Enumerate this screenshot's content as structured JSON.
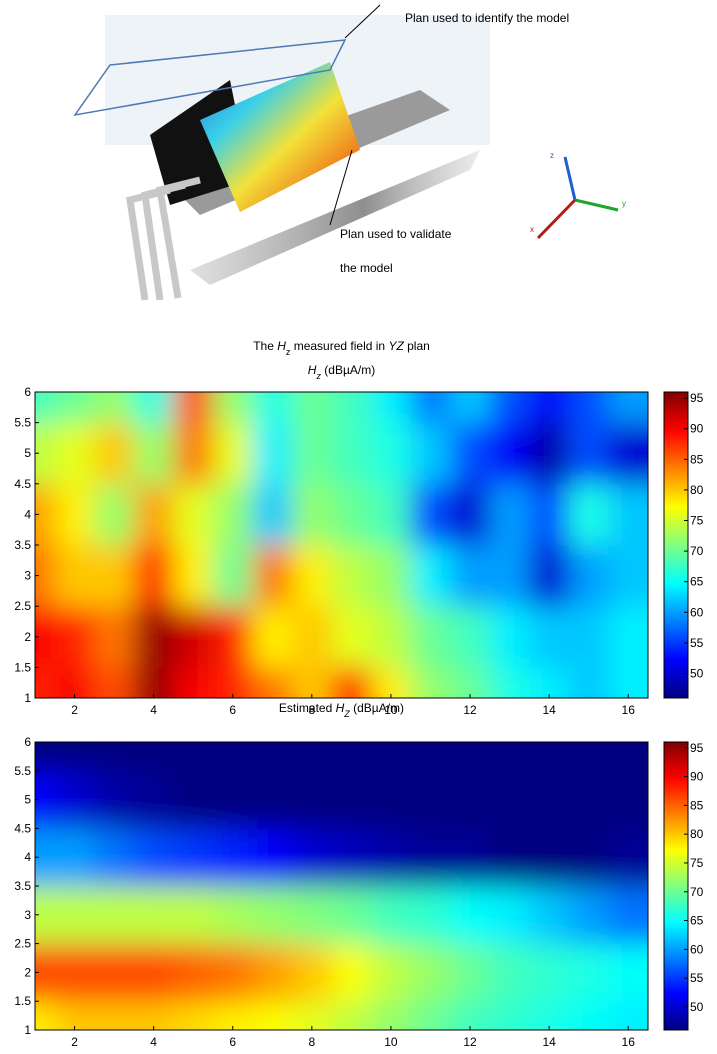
{
  "illustration": {
    "label_identify": "Plan used to identify the model",
    "label_validate_1": "Plan used to validate",
    "label_validate_2": "the model",
    "axis_z": "z",
    "axis_y": "y",
    "axis_x": "x"
  },
  "chart_data": [
    {
      "type": "contour",
      "title_lines": [
        [
          {
            "text": "The "
          },
          {
            "text": "H",
            "italic": true
          },
          {
            "text": "z",
            "sub": true
          },
          {
            "text": " measured field in "
          },
          {
            "text": "YZ",
            "italic": true
          },
          {
            "text": " plan"
          }
        ],
        [
          {
            "text": "H",
            "italic": true
          },
          {
            "text": "z",
            "sub": true,
            "italic": true
          },
          {
            "text": " (dBµA/m)"
          }
        ]
      ],
      "colormap": "jet",
      "x": [
        1,
        2,
        3,
        4,
        5,
        6,
        7,
        8,
        9,
        10,
        11,
        12,
        13,
        14,
        15,
        16
      ],
      "y": [
        1,
        2,
        3,
        4,
        5,
        6
      ],
      "z": [
        [
          88,
          90,
          86,
          95,
          90,
          88,
          84,
          80,
          88,
          78,
          72,
          70,
          66,
          64,
          62,
          64
        ],
        [
          90,
          88,
          84,
          95,
          92,
          88,
          78,
          80,
          76,
          74,
          70,
          68,
          64,
          62,
          62,
          64
        ],
        [
          84,
          80,
          80,
          88,
          78,
          70,
          84,
          78,
          74,
          72,
          64,
          60,
          60,
          50,
          60,
          62
        ],
        [
          82,
          78,
          72,
          82,
          76,
          72,
          62,
          72,
          70,
          68,
          56,
          50,
          60,
          56,
          66,
          62
        ],
        [
          74,
          76,
          80,
          72,
          84,
          76,
          64,
          70,
          68,
          66,
          62,
          56,
          52,
          48,
          56,
          50
        ],
        [
          68,
          70,
          72,
          66,
          86,
          72,
          66,
          70,
          68,
          64,
          58,
          62,
          56,
          52,
          56,
          60
        ]
      ],
      "xlim": [
        1,
        16.5
      ],
      "ylim": [
        1,
        6
      ],
      "xticks": [
        2,
        4,
        6,
        8,
        10,
        12,
        14,
        16
      ],
      "yticks": [
        1,
        1.5,
        2,
        2.5,
        3,
        3.5,
        4,
        4.5,
        5,
        5.5,
        6
      ],
      "clim": [
        46,
        96
      ],
      "cticks": [
        50,
        55,
        60,
        65,
        70,
        75,
        80,
        85,
        90,
        95
      ]
    },
    {
      "type": "contour",
      "title_lines": [
        [
          {
            "text": "Estimated "
          },
          {
            "text": "H",
            "italic": true
          },
          {
            "text": "Z",
            "sub": true,
            "italic": true
          },
          {
            "text": " (dBµA/m)"
          }
        ]
      ],
      "colormap": "jet",
      "x": [
        1,
        2,
        3,
        4,
        5,
        6,
        7,
        8,
        9,
        10,
        11,
        12,
        13,
        14,
        15,
        16
      ],
      "y": [
        1,
        2,
        3,
        4,
        5,
        6
      ],
      "z": [
        [
          78,
          80,
          80,
          80,
          79,
          78,
          77,
          76,
          74,
          72,
          70,
          68,
          67,
          66,
          65,
          64
        ],
        [
          86,
          86,
          86,
          86,
          85,
          84,
          82,
          80,
          77,
          74,
          72,
          70,
          68,
          67,
          66,
          65
        ],
        [
          74,
          74,
          74,
          74,
          74,
          73,
          72,
          71,
          70,
          68,
          67,
          65,
          64,
          62,
          60,
          58
        ],
        [
          60,
          60,
          58,
          56,
          55,
          54,
          52,
          50,
          49,
          48,
          47,
          47,
          46,
          46,
          46,
          47
        ],
        [
          52,
          50,
          48,
          47,
          46,
          46,
          46,
          46,
          46,
          46,
          46,
          46,
          46,
          46,
          46,
          46
        ],
        [
          46,
          46,
          46,
          46,
          46,
          46,
          46,
          46,
          46,
          46,
          46,
          46,
          46,
          46,
          46,
          46
        ]
      ],
      "xlim": [
        1,
        16.5
      ],
      "ylim": [
        1,
        6
      ],
      "xticks": [
        2,
        4,
        6,
        8,
        10,
        12,
        14,
        16
      ],
      "yticks": [
        1,
        1.5,
        2,
        2.5,
        3,
        3.5,
        4,
        4.5,
        5,
        5.5,
        6
      ],
      "clim": [
        46,
        96
      ],
      "cticks": [
        50,
        55,
        60,
        65,
        70,
        75,
        80,
        85,
        90,
        95
      ]
    }
  ]
}
